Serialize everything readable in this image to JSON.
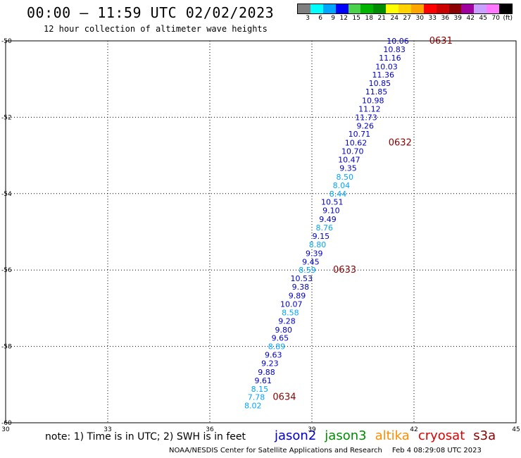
{
  "title": "00:00 – 11:59 UTC 02/02/2023",
  "subtitle": "12 hour collection of altimeter wave heights",
  "color_scale": {
    "colors": [
      "#7f7f7f",
      "#00ffff",
      "#00a5ff",
      "#0000ff",
      "#4bd24b",
      "#00b400",
      "#008c00",
      "#ffff00",
      "#ffd200",
      "#ffa500",
      "#ff0000",
      "#cd0000",
      "#8b0000",
      "#a000a0",
      "#c8a0ff",
      "#ff78ff",
      "#000000"
    ],
    "labels": [
      "3",
      "6",
      "9",
      "12",
      "15",
      "18",
      "21",
      "24",
      "27",
      "30",
      "33",
      "36",
      "39",
      "42",
      "45",
      "70",
      "(ft)"
    ]
  },
  "note": "note: 1) Time is in UTC; 2) SWH is in feet",
  "legend": [
    {
      "name": "jason2",
      "color": "#0000cd"
    },
    {
      "name": "jason3",
      "color": "#008c00"
    },
    {
      "name": "altika",
      "color": "#ff8c00"
    },
    {
      "name": "cryosat",
      "color": "#e00000"
    },
    {
      "name": "s3a",
      "color": "#8b0000"
    }
  ],
  "footer": {
    "credit": "NOAA/NESDIS Center for Satellite Applications and Research",
    "timestamp": "Feb  4 08:29:08 UTC 2023"
  },
  "chart_data": {
    "type": "scatter",
    "xlim": [
      30,
      45
    ],
    "ylim": [
      -60,
      -50
    ],
    "x_ticks": [
      "30",
      "33",
      "36",
      "39",
      "42",
      "45"
    ],
    "y_ticks": [
      "-50",
      "-52",
      "-54",
      "-56",
      "-58",
      "-60"
    ],
    "grid": true,
    "points": [
      {
        "lon": 41.85,
        "lat": -50.0,
        "swh": "10.06",
        "color": "#0000cd"
      },
      {
        "lon": 41.75,
        "lat": -50.22,
        "swh": "10.83",
        "color": "#0000cd"
      },
      {
        "lon": 41.62,
        "lat": -50.44,
        "swh": "11.16",
        "color": "#0000cd"
      },
      {
        "lon": 41.52,
        "lat": -50.67,
        "swh": "10.03",
        "color": "#0000cd"
      },
      {
        "lon": 41.42,
        "lat": -50.89,
        "swh": "11.36",
        "color": "#0000cd"
      },
      {
        "lon": 41.32,
        "lat": -51.11,
        "swh": "10.85",
        "color": "#0000cd"
      },
      {
        "lon": 41.22,
        "lat": -51.33,
        "swh": "11.85",
        "color": "#0000cd"
      },
      {
        "lon": 41.12,
        "lat": -51.56,
        "swh": "10.98",
        "color": "#0000cd"
      },
      {
        "lon": 41.02,
        "lat": -51.78,
        "swh": "11.12",
        "color": "#0000cd"
      },
      {
        "lon": 40.92,
        "lat": -52.0,
        "swh": "11.73",
        "color": "#0000cd"
      },
      {
        "lon": 40.82,
        "lat": -52.22,
        "swh": "9.26",
        "color": "#0000cd"
      },
      {
        "lon": 40.72,
        "lat": -52.44,
        "swh": "10.71",
        "color": "#0000cd"
      },
      {
        "lon": 40.62,
        "lat": -52.67,
        "swh": "10.62",
        "color": "#0000cd"
      },
      {
        "lon": 40.52,
        "lat": -52.89,
        "swh": "10.70",
        "color": "#0000cd"
      },
      {
        "lon": 40.42,
        "lat": -53.11,
        "swh": "10.47",
        "color": "#0000cd"
      },
      {
        "lon": 40.32,
        "lat": -53.33,
        "swh": "9.35",
        "color": "#0000cd"
      },
      {
        "lon": 40.22,
        "lat": -53.56,
        "swh": "8.50",
        "color": "#00a5ff"
      },
      {
        "lon": 40.12,
        "lat": -53.78,
        "swh": "8.04",
        "color": "#00a5ff"
      },
      {
        "lon": 40.02,
        "lat": -54.0,
        "swh": "8.44",
        "color": "#00a5ff"
      },
      {
        "lon": 39.92,
        "lat": -54.22,
        "swh": "10.51",
        "color": "#0000cd"
      },
      {
        "lon": 39.82,
        "lat": -54.44,
        "swh": "9.10",
        "color": "#0000cd"
      },
      {
        "lon": 39.72,
        "lat": -54.67,
        "swh": "9.49",
        "color": "#0000cd"
      },
      {
        "lon": 39.62,
        "lat": -54.89,
        "swh": "8.76",
        "color": "#00a5ff"
      },
      {
        "lon": 39.52,
        "lat": -55.11,
        "swh": "9.15",
        "color": "#0000cd"
      },
      {
        "lon": 39.42,
        "lat": -55.33,
        "swh": "8.80",
        "color": "#00a5ff"
      },
      {
        "lon": 39.32,
        "lat": -55.56,
        "swh": "9.39",
        "color": "#0000cd"
      },
      {
        "lon": 39.22,
        "lat": -55.78,
        "swh": "9.45",
        "color": "#0000cd"
      },
      {
        "lon": 39.12,
        "lat": -56.0,
        "swh": "8.59",
        "color": "#00a5ff"
      },
      {
        "lon": 39.02,
        "lat": -56.22,
        "swh": "10.53",
        "color": "#0000cd"
      },
      {
        "lon": 38.92,
        "lat": -56.44,
        "swh": "9.38",
        "color": "#0000cd"
      },
      {
        "lon": 38.82,
        "lat": -56.67,
        "swh": "9.89",
        "color": "#0000cd"
      },
      {
        "lon": 38.72,
        "lat": -56.89,
        "swh": "10.07",
        "color": "#0000cd"
      },
      {
        "lon": 38.62,
        "lat": -57.11,
        "swh": "8.58",
        "color": "#00a5ff"
      },
      {
        "lon": 38.52,
        "lat": -57.33,
        "swh": "9.28",
        "color": "#0000cd"
      },
      {
        "lon": 38.42,
        "lat": -57.56,
        "swh": "9.80",
        "color": "#0000cd"
      },
      {
        "lon": 38.32,
        "lat": -57.78,
        "swh": "9.65",
        "color": "#0000cd"
      },
      {
        "lon": 38.22,
        "lat": -58.0,
        "swh": "8.89",
        "color": "#00a5ff"
      },
      {
        "lon": 38.12,
        "lat": -58.22,
        "swh": "9.63",
        "color": "#0000cd"
      },
      {
        "lon": 38.02,
        "lat": -58.44,
        "swh": "9.23",
        "color": "#0000cd"
      },
      {
        "lon": 37.92,
        "lat": -58.67,
        "swh": "9.88",
        "color": "#0000cd"
      },
      {
        "lon": 37.82,
        "lat": -58.89,
        "swh": "9.61",
        "color": "#0000cd"
      },
      {
        "lon": 37.72,
        "lat": -59.11,
        "swh": "8.15",
        "color": "#00a5ff"
      },
      {
        "lon": 37.62,
        "lat": -59.33,
        "swh": "7.78",
        "color": "#00a5ff"
      },
      {
        "lon": 37.52,
        "lat": -59.55,
        "swh": "8.02",
        "color": "#00a5ff"
      }
    ],
    "time_labels": [
      {
        "lon": 42.45,
        "lat": -50.0,
        "text": "0631",
        "color": "#8b0000"
      },
      {
        "lon": 41.25,
        "lat": -52.67,
        "text": "0632",
        "color": "#8b0000"
      },
      {
        "lon": 39.62,
        "lat": -56.0,
        "text": "0633",
        "color": "#8b0000"
      },
      {
        "lon": 37.85,
        "lat": -59.33,
        "text": "0634",
        "color": "#8b0000"
      }
    ]
  }
}
